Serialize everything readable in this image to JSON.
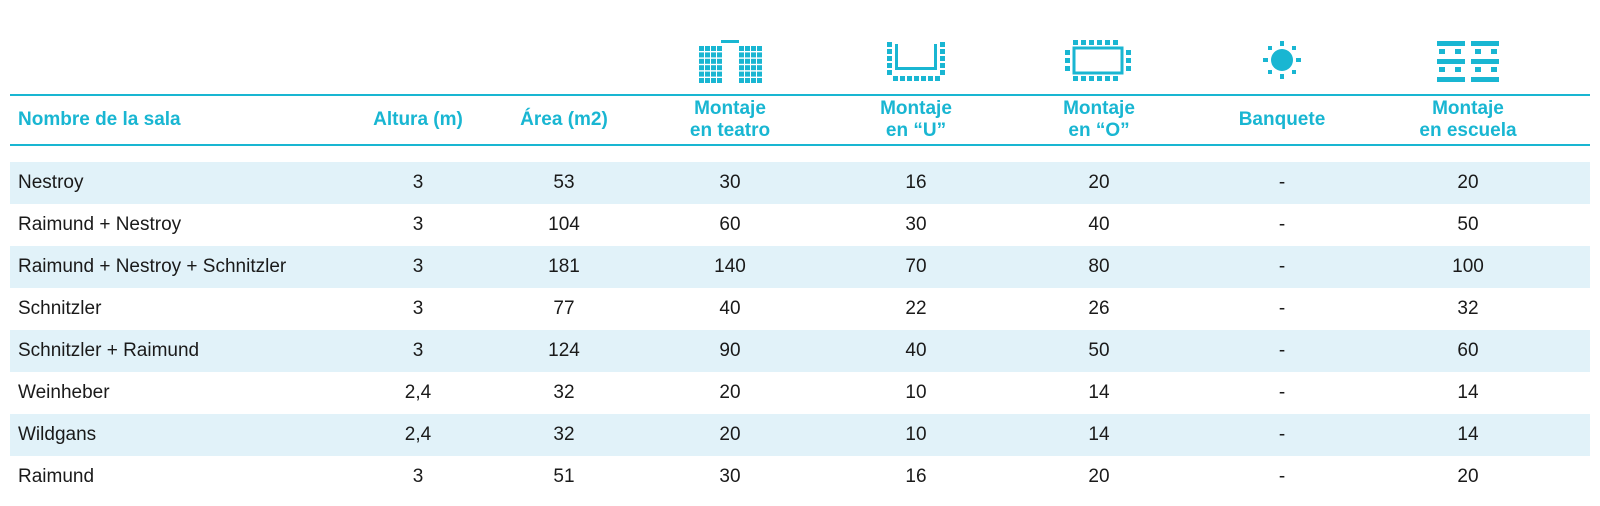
{
  "colors": {
    "accent": "#19b6d2",
    "row_shade": "#e1f2f9",
    "text": "#1a1a1a"
  },
  "icons": [
    "theatre-layout-icon",
    "u-shape-layout-icon",
    "o-shape-layout-icon",
    "banquet-icon",
    "classroom-layout-icon"
  ],
  "headers": {
    "name": "Nombre de la sala",
    "height": "Altura (m)",
    "area": "Área (m2)",
    "theatre": {
      "line1": "Montaje",
      "line2": "en teatro"
    },
    "u_shape": {
      "line1": "Montaje",
      "line2": "en “U”"
    },
    "o_shape": {
      "line1": "Montaje",
      "line2": "en “O”"
    },
    "banquet": "Banquete",
    "classroom": {
      "line1": "Montaje",
      "line2": "en escuela"
    }
  },
  "rows": [
    {
      "name": "Nestroy",
      "height": "3",
      "area": "53",
      "theatre": "30",
      "u": "16",
      "o": "20",
      "banquet": "-",
      "classroom": "20"
    },
    {
      "name": "Raimund + Nestroy",
      "height": "3",
      "area": "104",
      "theatre": "60",
      "u": "30",
      "o": "40",
      "banquet": "-",
      "classroom": "50"
    },
    {
      "name": "Raimund + Nestroy + Schnitzler",
      "height": "3",
      "area": "181",
      "theatre": "140",
      "u": "70",
      "o": "80",
      "banquet": "-",
      "classroom": "100"
    },
    {
      "name": "Schnitzler",
      "height": "3",
      "area": "77",
      "theatre": "40",
      "u": "22",
      "o": "26",
      "banquet": "-",
      "classroom": "32"
    },
    {
      "name": "Schnitzler + Raimund",
      "height": "3",
      "area": "124",
      "theatre": "90",
      "u": "40",
      "o": "50",
      "banquet": "-",
      "classroom": "60"
    },
    {
      "name": "Weinheber",
      "height": "2,4",
      "area": "32",
      "theatre": "20",
      "u": "10",
      "o": "14",
      "banquet": "-",
      "classroom": "14"
    },
    {
      "name": "Wildgans",
      "height": "2,4",
      "area": "32",
      "theatre": "20",
      "u": "10",
      "o": "14",
      "banquet": "-",
      "classroom": "14"
    },
    {
      "name": "Raimund",
      "height": "3",
      "area": "51",
      "theatre": "30",
      "u": "16",
      "o": "20",
      "banquet": "-",
      "classroom": "20"
    }
  ]
}
